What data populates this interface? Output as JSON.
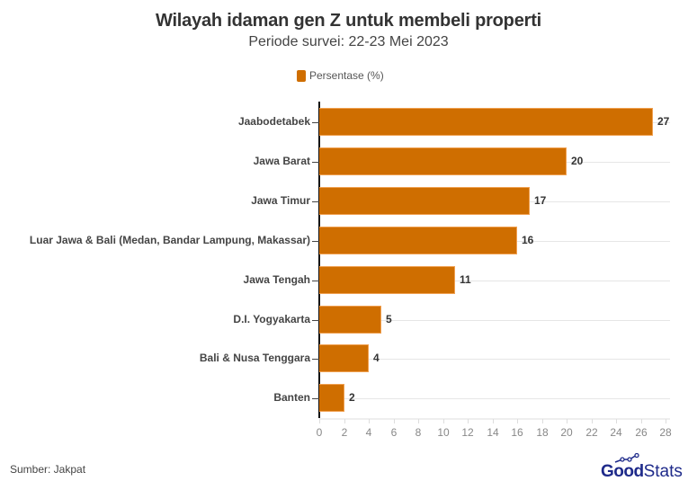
{
  "header": {
    "title": "Wilayah idaman gen Z untuk membeli properti",
    "subtitle": "Periode survei: 22-23 Mei 2023"
  },
  "legend": {
    "label": "Persentase (%)",
    "color": "#CF6E00"
  },
  "footer": {
    "source": "Sumber: Jakpat",
    "logo_bold": "Good",
    "logo_light": "Stats",
    "logo_color": "#1e2a8a"
  },
  "chart_data": {
    "type": "bar",
    "orientation": "horizontal",
    "title": "Wilayah idaman gen Z untuk membeli properti",
    "subtitle": "Periode survei: 22-23 Mei 2023",
    "xlabel": "",
    "ylabel": "",
    "categories": [
      "Jaabodetabek",
      "Jawa Barat",
      "Jawa Timur",
      "Luar Jawa & Bali (Medan, Bandar Lampung, Makassar)",
      "Jawa Tengah",
      "D.I. Yogyakarta",
      "Bali & Nusa Tenggara",
      "Banten"
    ],
    "series": [
      {
        "name": "Persentase (%)",
        "values": [
          27,
          20,
          17,
          16,
          11,
          5,
          4,
          2
        ],
        "color": "#CF6E00"
      }
    ],
    "xlim": [
      0,
      28
    ],
    "xticks": [
      0,
      2,
      4,
      6,
      8,
      10,
      12,
      14,
      16,
      18,
      20,
      22,
      24,
      26,
      28
    ],
    "grid": "horizontal category lines",
    "legend_position": "top-center",
    "data_labels": true,
    "source": "Sumber: Jakpat"
  }
}
